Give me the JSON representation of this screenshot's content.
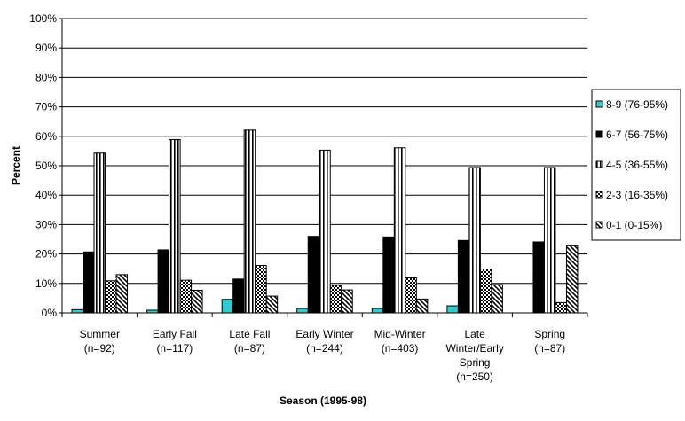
{
  "chart_data": {
    "type": "bar",
    "title": "",
    "xlabel": "Season (1995-98)",
    "ylabel": "Percent",
    "ylim": [
      0,
      100
    ],
    "yticks": [
      "0%",
      "10%",
      "20%",
      "30%",
      "40%",
      "50%",
      "60%",
      "70%",
      "80%",
      "90%",
      "100%"
    ],
    "grid": true,
    "legend_position": "right",
    "categories": [
      [
        "Summer",
        "(n=92)"
      ],
      [
        "Early Fall",
        "(n=117)"
      ],
      [
        "Late Fall",
        "(n=87)"
      ],
      [
        "Early Winter",
        "(n=244)"
      ],
      [
        "Mid-Winter",
        "(n=403)"
      ],
      [
        "Late",
        "Winter/Early",
        "Spring",
        "(n=250)"
      ],
      [
        "Spring",
        "(n=87)"
      ]
    ],
    "series": [
      {
        "name": "8-9 (76-95%)",
        "fill": "#33cccc",
        "pattern": "solid",
        "values": [
          1.1,
          0.9,
          4.6,
          1.5,
          1.5,
          2.4,
          0
        ]
      },
      {
        "name": "6-7 (56-75%)",
        "fill": "#000000",
        "pattern": "solid",
        "values": [
          20.7,
          21.4,
          11.5,
          26.0,
          25.8,
          24.6,
          24.1
        ]
      },
      {
        "name": "4-5 (36-55%)",
        "fill": "#ffffff",
        "pattern": "vstripe",
        "values": [
          54.3,
          58.9,
          62.1,
          55.3,
          56.1,
          49.4,
          49.4
        ]
      },
      {
        "name": "2-3 (16-35%)",
        "fill": "#000000",
        "pattern": "checker",
        "values": [
          10.9,
          11.1,
          16.1,
          9.4,
          11.9,
          14.9,
          3.5
        ]
      },
      {
        "name": "0-1 (0-15%)",
        "fill": "#ffffff",
        "pattern": "diagonal",
        "values": [
          13.0,
          7.7,
          5.7,
          7.8,
          4.7,
          9.6,
          23.0
        ]
      }
    ]
  }
}
